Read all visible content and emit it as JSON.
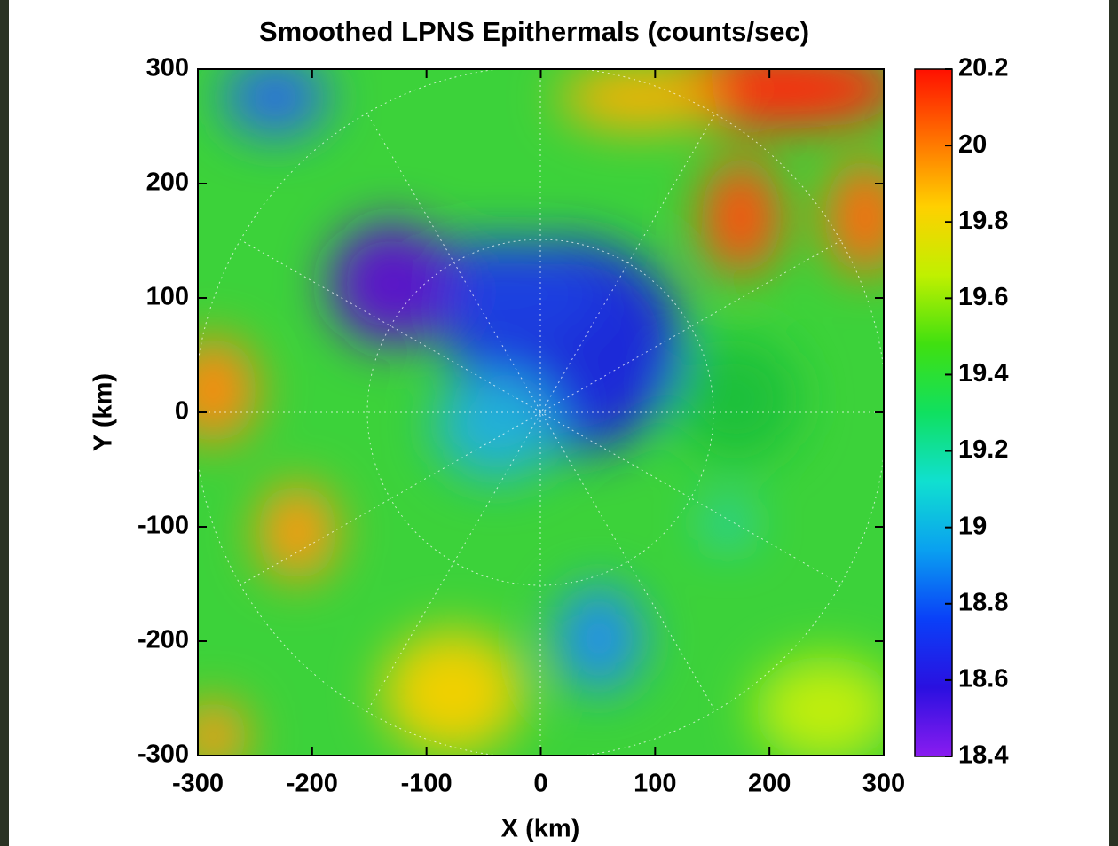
{
  "chart_data": {
    "type": "heatmap",
    "title": "Smoothed LPNS Epithermals (counts/sec)",
    "x_label": "X (km)",
    "y_label": "Y (km)",
    "xlim": [
      -300,
      300
    ],
    "xticks": [
      -300,
      -200,
      -100,
      0,
      100,
      200,
      300
    ],
    "ylim": [
      -300,
      300
    ],
    "yticks": [
      -300,
      -200,
      -100,
      0,
      100,
      200,
      300
    ],
    "colorbar": {
      "lim": [
        18.4,
        20.2
      ],
      "ticks": [
        18.4,
        18.6,
        18.8,
        19,
        19.2,
        19.4,
        19.6,
        19.8,
        20,
        20.2
      ],
      "colors": [
        "#8a1cf0",
        "#2a10e0",
        "#0a40f8",
        "#0aa0f0",
        "#10e0d0",
        "#10e060",
        "#40e010",
        "#c0f000",
        "#ffd000",
        "#ff7000",
        "#ff1000"
      ]
    }
  }
}
